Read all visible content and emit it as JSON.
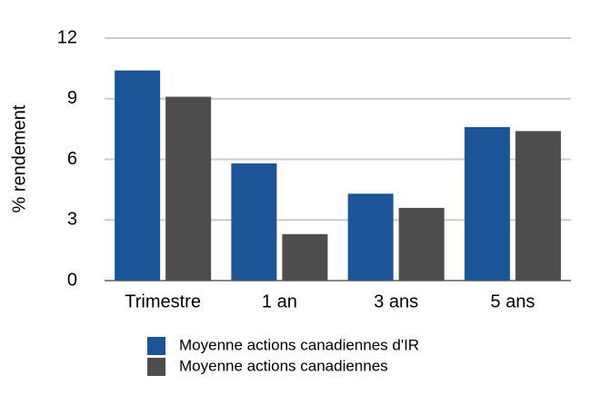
{
  "chart_data": {
    "type": "bar",
    "y_label": "% rendement",
    "categories": [
      "Trimestre",
      "1 an",
      "3 ans",
      "5 ans"
    ],
    "series": [
      {
        "name": "Moyenne actions canadiennes d'IR",
        "color": "#1b5597",
        "values": [
          10.4,
          5.8,
          4.3,
          7.6
        ]
      },
      {
        "name": "Moyenne actions canadiennes",
        "color": "#4d4d4d",
        "values": [
          9.1,
          2.3,
          3.6,
          7.4
        ]
      }
    ],
    "ylim": [
      0,
      12
    ],
    "yticks": [
      0,
      3,
      6,
      9,
      12
    ],
    "grid": true
  }
}
